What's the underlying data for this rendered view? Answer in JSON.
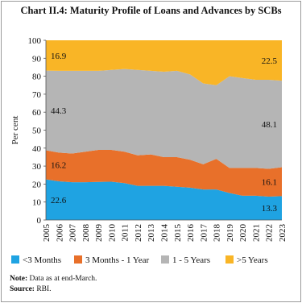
{
  "chart_data": {
    "type": "stacked-area",
    "title": "Chart II.4: Maturity Profile of Loans and Advances by SCBs",
    "y_label": "Per cent",
    "categories": [
      "2005",
      "2006",
      "2007",
      "2008",
      "2009",
      "2010",
      "2011",
      "2012",
      "2013",
      "2014",
      "2015",
      "2016",
      "2017",
      "2018",
      "2019",
      "2020",
      "2021",
      "2022",
      "2023"
    ],
    "series": [
      {
        "name": "<3 Months",
        "color": "#1fa3e2",
        "values": [
          22.6,
          21.5,
          21,
          21,
          21.2,
          21.3,
          20.5,
          19,
          19,
          19,
          18.5,
          18,
          17,
          17,
          15,
          13.5,
          13.5,
          13,
          13.3
        ]
      },
      {
        "name": "3 Months - 1 Year",
        "color": "#e8702a",
        "values": [
          16.2,
          16,
          16,
          17,
          17.8,
          17.7,
          17.5,
          17,
          17.5,
          16,
          16.5,
          15.5,
          14,
          17,
          14,
          15.5,
          15.5,
          15.5,
          16.1
        ]
      },
      {
        "name": "1 - 5 Years",
        "color": "#b5b5b5",
        "values": [
          44.3,
          45.5,
          46,
          45,
          44,
          44.5,
          46,
          47.5,
          46.5,
          47.5,
          48,
          47.5,
          45,
          41,
          51,
          50,
          49,
          49.5,
          48.1
        ]
      },
      {
        "name": ">5 Years",
        "color": "#f9b526",
        "values": [
          16.9,
          17,
          17,
          17,
          17,
          16.5,
          16,
          16.5,
          17,
          17.5,
          17,
          19,
          24,
          25,
          20,
          21,
          22,
          22,
          22.5
        ]
      }
    ],
    "ylim": [
      0,
      100
    ],
    "yticks": [
      0,
      10,
      20,
      30,
      40,
      50,
      60,
      70,
      80,
      90,
      100
    ],
    "notes": [
      {
        "label": "Note:",
        "text": "Data as at end-March."
      },
      {
        "label": "Source:",
        "text": "RBI."
      }
    ]
  }
}
